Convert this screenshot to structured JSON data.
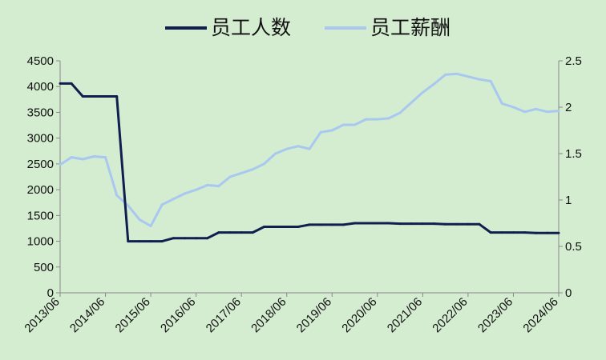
{
  "chart_data": {
    "type": "line",
    "title": "",
    "xlabel": "",
    "ylabel": "",
    "y2label": "",
    "grid": false,
    "legend_position": "top",
    "legend": [
      "员工人数",
      "员工薪酬"
    ],
    "x_tick_labels": [
      "2013/06",
      "2014/06",
      "2015/06",
      "2016/06",
      "2017/06",
      "2018/06",
      "2019/06",
      "2020/06",
      "2021/06",
      "2022/06",
      "2023/06",
      "2024/06"
    ],
    "ylim": [
      0,
      4500
    ],
    "y_ticks": [
      "0",
      "500",
      "1000",
      "1500",
      "2000",
      "2500",
      "3000",
      "3500",
      "4000",
      "4500"
    ],
    "y2lim": [
      0,
      2.5
    ],
    "y2_ticks": [
      "0",
      "0.5",
      "1",
      "1.5",
      "2",
      "2.5"
    ],
    "series": [
      {
        "name": "员工人数",
        "axis": "left",
        "color": "#0f1f4f",
        "x": [
          "2013/06",
          "2013/09",
          "2013/12",
          "2014/03",
          "2014/06",
          "2014/09",
          "2014/12",
          "2015/03",
          "2015/06",
          "2015/09",
          "2015/12",
          "2016/03",
          "2016/06",
          "2016/09",
          "2016/12",
          "2017/03",
          "2017/06",
          "2017/09",
          "2017/12",
          "2018/03",
          "2018/06",
          "2018/09",
          "2018/12",
          "2019/03",
          "2019/06",
          "2019/09",
          "2019/12",
          "2020/03",
          "2020/06",
          "2020/09",
          "2020/12",
          "2021/03",
          "2021/06",
          "2021/09",
          "2021/12",
          "2022/03",
          "2022/06",
          "2022/09",
          "2022/12",
          "2023/03",
          "2023/06",
          "2023/09",
          "2023/12",
          "2024/03",
          "2024/06"
        ],
        "values": [
          4060,
          4060,
          3810,
          3810,
          3810,
          3810,
          1000,
          1000,
          1000,
          1000,
          1060,
          1060,
          1060,
          1060,
          1170,
          1170,
          1170,
          1170,
          1280,
          1280,
          1280,
          1280,
          1320,
          1320,
          1320,
          1320,
          1350,
          1350,
          1350,
          1350,
          1340,
          1340,
          1340,
          1340,
          1330,
          1330,
          1330,
          1330,
          1170,
          1170,
          1170,
          1170,
          1160,
          1160,
          1160
        ]
      },
      {
        "name": "员工薪酬",
        "axis": "right",
        "color": "#a9c8f0",
        "x": [
          "2013/06",
          "2013/09",
          "2013/12",
          "2014/03",
          "2014/06",
          "2014/09",
          "2014/12",
          "2015/03",
          "2015/06",
          "2015/09",
          "2015/12",
          "2016/03",
          "2016/06",
          "2016/09",
          "2016/12",
          "2017/03",
          "2017/06",
          "2017/09",
          "2017/12",
          "2018/03",
          "2018/06",
          "2018/09",
          "2018/12",
          "2019/03",
          "2019/06",
          "2019/09",
          "2019/12",
          "2020/03",
          "2020/06",
          "2020/09",
          "2020/12",
          "2021/03",
          "2021/06",
          "2021/09",
          "2021/12",
          "2022/03",
          "2022/06",
          "2022/09",
          "2022/12",
          "2023/03",
          "2023/06",
          "2023/09",
          "2023/12",
          "2024/03",
          "2024/06"
        ],
        "values": [
          1.38,
          1.46,
          1.44,
          1.47,
          1.46,
          1.05,
          0.94,
          0.79,
          0.72,
          0.95,
          1.01,
          1.07,
          1.11,
          1.16,
          1.15,
          1.25,
          1.29,
          1.33,
          1.39,
          1.5,
          1.55,
          1.58,
          1.55,
          1.73,
          1.75,
          1.81,
          1.81,
          1.87,
          1.87,
          1.88,
          1.94,
          2.05,
          2.16,
          2.25,
          2.35,
          2.36,
          2.33,
          2.3,
          2.28,
          2.04,
          2.0,
          1.95,
          1.98,
          1.95,
          1.96
        ]
      }
    ]
  }
}
